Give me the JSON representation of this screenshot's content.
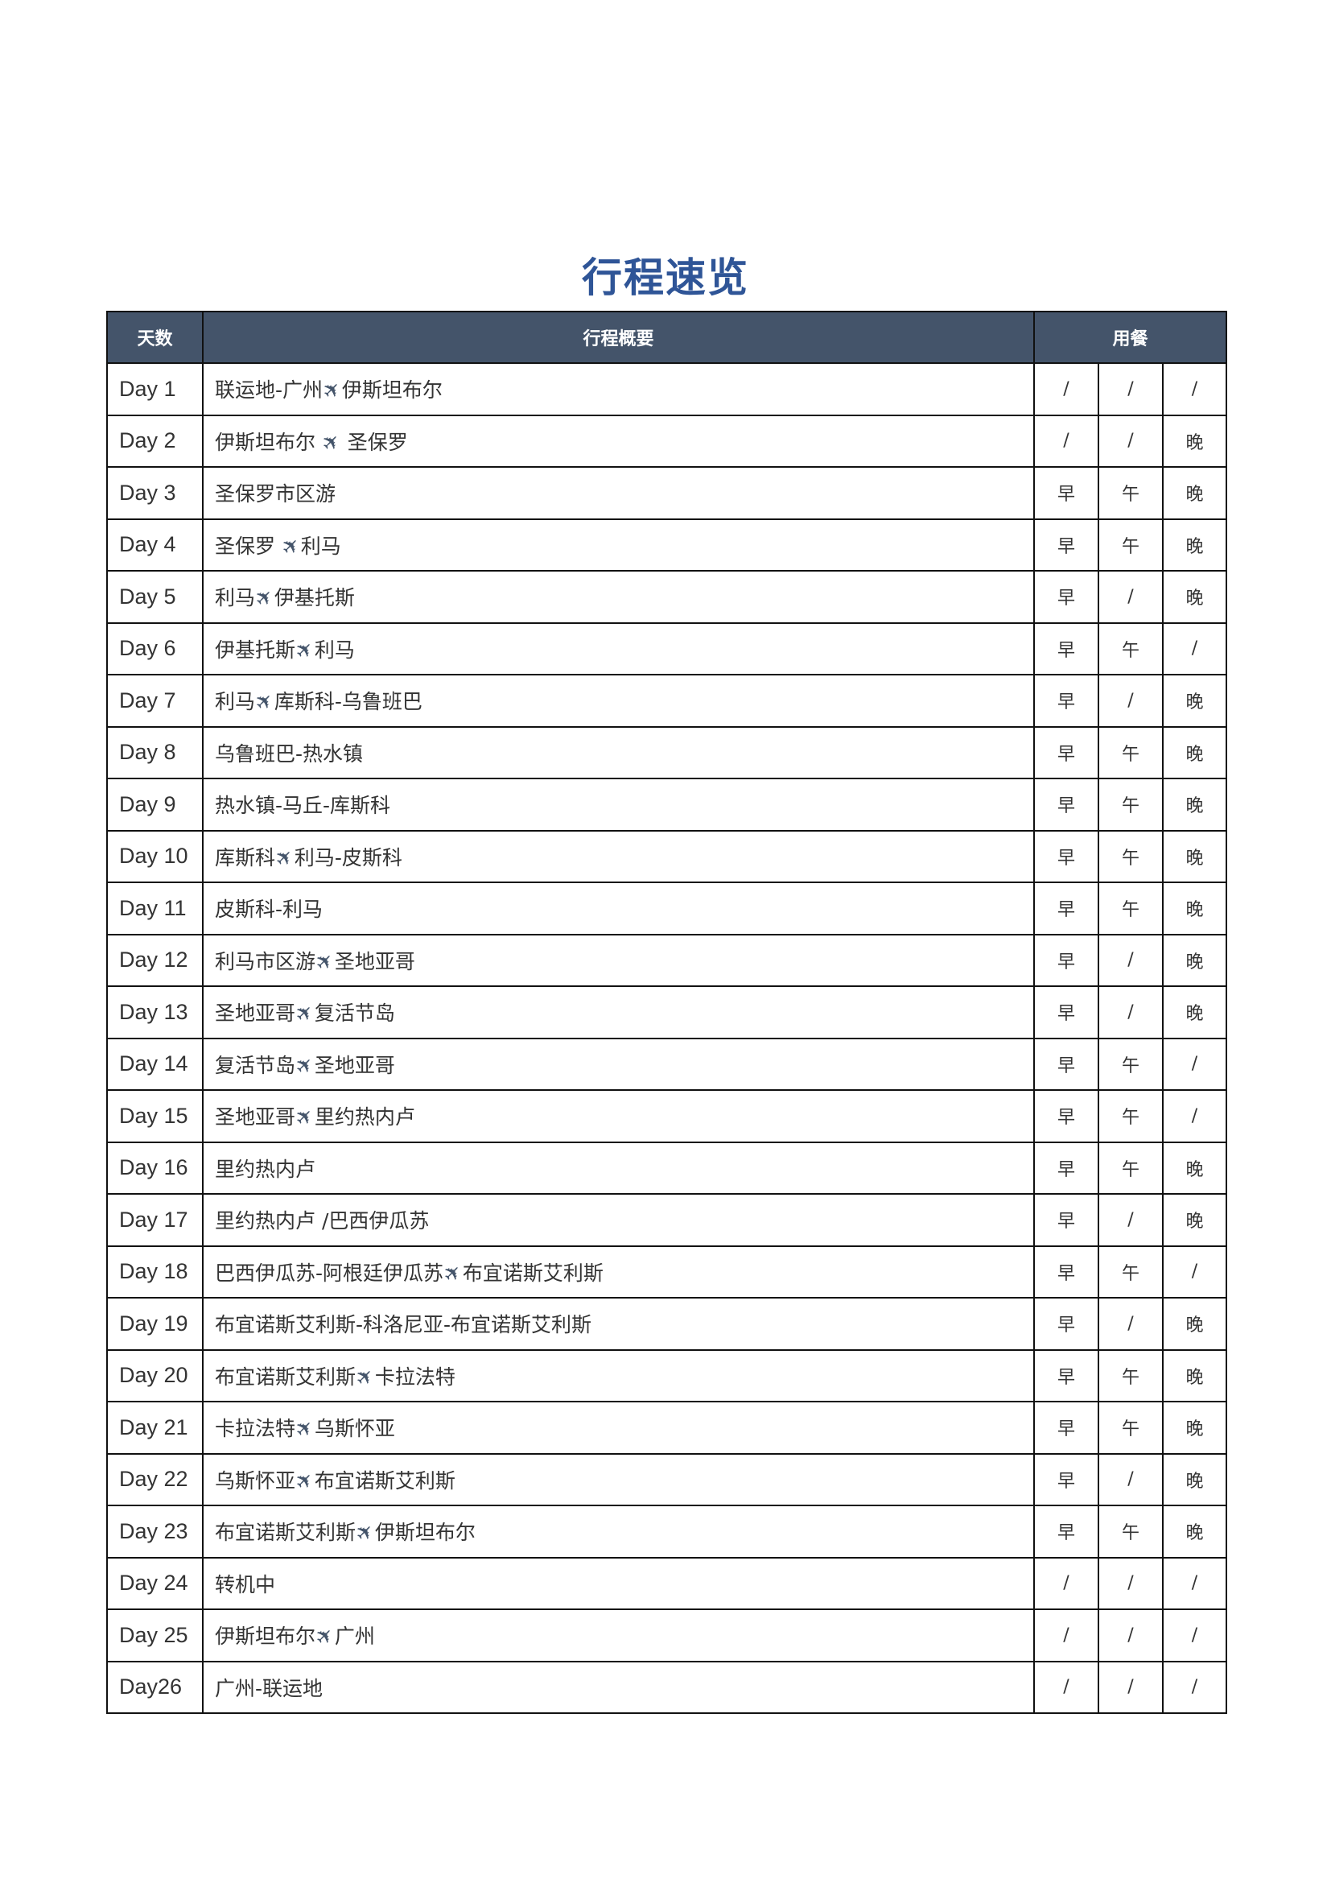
{
  "title": "行程速览",
  "header": {
    "day": "天数",
    "summary": "行程概要",
    "meals": "用餐"
  },
  "icons": {
    "plane": "airplane-icon"
  },
  "colors": {
    "header_bg": "#44546a",
    "title": "#2f5597"
  },
  "rows": [
    {
      "day": "Day 1",
      "summary": "联运地-广州✈伊斯坦布尔",
      "meals": [
        "/",
        "/",
        "/"
      ]
    },
    {
      "day": "Day 2",
      "summary": "伊斯坦布尔 ✈ 圣保罗",
      "meals": [
        "/",
        "/",
        "晚"
      ]
    },
    {
      "day": "Day 3",
      "summary": "圣保罗市区游",
      "meals": [
        "早",
        "午",
        "晚"
      ]
    },
    {
      "day": "Day 4",
      "summary": "圣保罗 ✈利马",
      "meals": [
        "早",
        "午",
        "晚"
      ]
    },
    {
      "day": "Day 5",
      "summary": "利马✈伊基托斯",
      "meals": [
        "早",
        "/",
        "晚"
      ]
    },
    {
      "day": "Day 6",
      "summary": "伊基托斯✈利马",
      "meals": [
        "早",
        "午",
        "/"
      ]
    },
    {
      "day": "Day 7",
      "summary": "利马✈库斯科-乌鲁班巴",
      "meals": [
        "早",
        "/",
        "晚"
      ]
    },
    {
      "day": "Day 8",
      "summary": "乌鲁班巴-热水镇",
      "meals": [
        "早",
        "午",
        "晚"
      ]
    },
    {
      "day": "Day 9",
      "summary": "热水镇-马丘-库斯科",
      "meals": [
        "早",
        "午",
        "晚"
      ]
    },
    {
      "day": "Day 10",
      "summary": "库斯科✈利马-皮斯科",
      "meals": [
        "早",
        "午",
        "晚"
      ]
    },
    {
      "day": "Day 11",
      "summary": "皮斯科-利马",
      "meals": [
        "早",
        "午",
        "晚"
      ]
    },
    {
      "day": "Day 12",
      "summary": "利马市区游✈圣地亚哥",
      "meals": [
        "早",
        "/",
        "晚"
      ]
    },
    {
      "day": "Day 13",
      "summary": "圣地亚哥✈复活节岛",
      "meals": [
        "早",
        "/",
        "晚"
      ]
    },
    {
      "day": "Day 14",
      "summary": "复活节岛✈圣地亚哥",
      "meals": [
        "早",
        "午",
        "/"
      ]
    },
    {
      "day": "Day 15",
      "summary": "圣地亚哥✈里约热内卢",
      "meals": [
        "早",
        "午",
        "/"
      ]
    },
    {
      "day": "Day 16",
      "summary": "里约热内卢",
      "meals": [
        "早",
        "午",
        "晚"
      ]
    },
    {
      "day": "Day 17",
      "summary": "里约热内卢 /巴西伊瓜苏",
      "meals": [
        "早",
        "/",
        "晚"
      ]
    },
    {
      "day": "Day 18",
      "summary": "巴西伊瓜苏-阿根廷伊瓜苏✈布宜诺斯艾利斯",
      "meals": [
        "早",
        "午",
        "/"
      ]
    },
    {
      "day": "Day 19",
      "summary": "布宜诺斯艾利斯-科洛尼亚-布宜诺斯艾利斯",
      "meals": [
        "早",
        "/",
        "晚"
      ]
    },
    {
      "day": "Day 20",
      "summary": "布宜诺斯艾利斯✈卡拉法特",
      "meals": [
        "早",
        "午",
        "晚"
      ]
    },
    {
      "day": "Day 21",
      "summary": "卡拉法特✈乌斯怀亚",
      "meals": [
        "早",
        "午",
        "晚"
      ]
    },
    {
      "day": "Day 22",
      "summary": "乌斯怀亚✈布宜诺斯艾利斯",
      "meals": [
        "早",
        "/",
        "晚"
      ]
    },
    {
      "day": "Day 23",
      "summary": "布宜诺斯艾利斯✈伊斯坦布尔",
      "meals": [
        "早",
        "午",
        "晚"
      ]
    },
    {
      "day": "Day 24",
      "summary": "转机中",
      "meals": [
        "/",
        "/",
        "/"
      ]
    },
    {
      "day": "Day 25",
      "summary": "伊斯坦布尔✈广州",
      "meals": [
        "/",
        "/",
        "/"
      ]
    },
    {
      "day": "Day26",
      "summary": "广州-联运地",
      "meals": [
        "/",
        "/",
        "/"
      ]
    }
  ]
}
